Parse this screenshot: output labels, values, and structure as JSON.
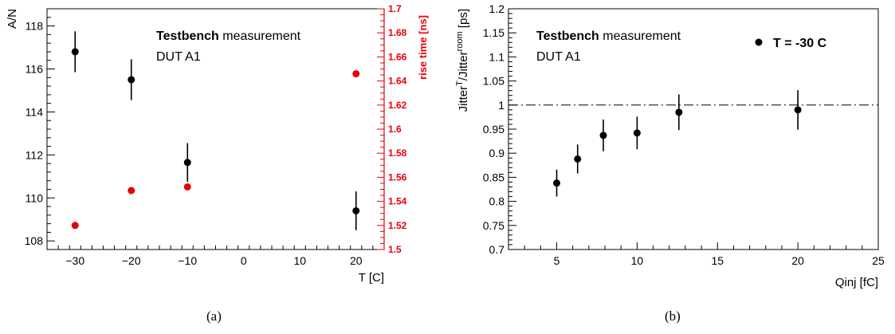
{
  "chart_data": [
    {
      "type": "scatter",
      "panel_label": "(a)",
      "annotation_bold": "Testbench",
      "annotation_rest": " measurement",
      "annotation_line2": "DUT A1",
      "xlabel": "T [C]",
      "ylabel": "A/N",
      "y2label": "rise time [ns]",
      "xlim": [
        -35,
        25
      ],
      "ylim": [
        107.6,
        118.8
      ],
      "y2lim": [
        1.5,
        1.7
      ],
      "x_ticks": [
        -30,
        -20,
        -10,
        0,
        10,
        20
      ],
      "y_ticks": [
        108,
        110,
        112,
        114,
        116,
        118
      ],
      "y2_ticks": [
        1.5,
        1.52,
        1.54,
        1.56,
        1.58,
        1.6,
        1.62,
        1.64,
        1.66,
        1.68,
        1.7
      ],
      "series": [
        {
          "axis": "left",
          "color": "#000000",
          "points": [
            {
              "x": -30,
              "y": 116.8,
              "err": 0.95
            },
            {
              "x": -20,
              "y": 115.5,
              "err": 0.95
            },
            {
              "x": -10,
              "y": 111.65,
              "err": 0.9
            },
            {
              "x": 20,
              "y": 109.4,
              "err": 0.9
            }
          ]
        },
        {
          "axis": "right",
          "color": "#e8000b",
          "points": [
            {
              "x": -30,
              "y": 1.52
            },
            {
              "x": -20,
              "y": 1.549
            },
            {
              "x": -10,
              "y": 1.552
            },
            {
              "x": 20,
              "y": 1.646
            }
          ]
        }
      ]
    },
    {
      "type": "scatter",
      "panel_label": "(b)",
      "annotation_bold": "Testbench",
      "annotation_rest": " measurement",
      "annotation_line2": "DUT A1",
      "legend_label": "T = -30 C",
      "legend_position": "top-right",
      "xlabel": "Qinj [fC]",
      "ylabel": "Jitter^T/Jitter^room [ps]",
      "ylabel_parts": {
        "a": "Jitter",
        "a_sup": "T",
        "b": "/Jitter",
        "b_sup": "room",
        "c": " [ps]"
      },
      "xlim": [
        2,
        25
      ],
      "ylim": [
        0.7,
        1.2
      ],
      "x_ticks": [
        5,
        10,
        15,
        20,
        25
      ],
      "y_ticks": [
        0.7,
        0.75,
        0.8,
        0.85,
        0.9,
        0.95,
        1,
        1.05,
        1.1,
        1.15,
        1.2
      ],
      "reference_line": 1,
      "series": [
        {
          "name": "T = -30 C",
          "color": "#000000",
          "points": [
            {
              "x": 5,
              "y": 0.838,
              "err": 0.028
            },
            {
              "x": 6.3,
              "y": 0.888,
              "err": 0.03
            },
            {
              "x": 7.9,
              "y": 0.937,
              "err": 0.033
            },
            {
              "x": 10,
              "y": 0.942,
              "err": 0.034
            },
            {
              "x": 12.6,
              "y": 0.985,
              "err": 0.037
            },
            {
              "x": 20,
              "y": 0.99,
              "err": 0.041
            }
          ]
        }
      ]
    }
  ]
}
